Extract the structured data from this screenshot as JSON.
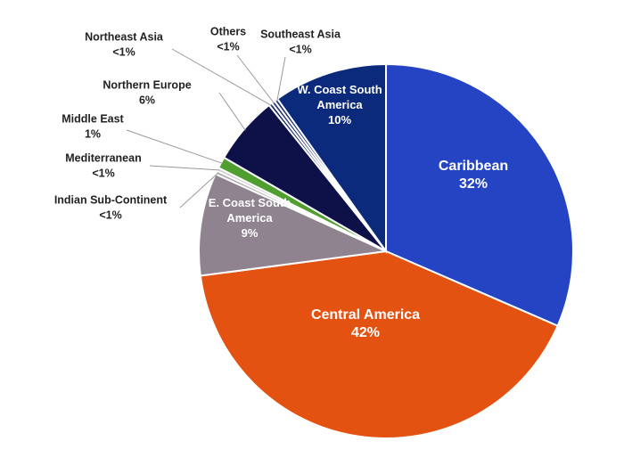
{
  "chart_data": {
    "type": "pie",
    "title": "",
    "slices": [
      {
        "name": "Caribbean",
        "value": 32,
        "label_lines": [
          "Caribbean"
        ],
        "pct_label": "32%",
        "color": "#2444c4",
        "label_pos": "inside"
      },
      {
        "name": "Central America",
        "value": 42,
        "label_lines": [
          "Central America"
        ],
        "pct_label": "42%",
        "color": "#e45211",
        "label_pos": "inside"
      },
      {
        "name": "E. Coast South America",
        "value": 9,
        "label_lines": [
          "E. Coast South",
          "America"
        ],
        "pct_label": "9%",
        "color": "#8e838f",
        "label_pos": "inside"
      },
      {
        "name": "Indian Sub-Continent",
        "value": 0.3,
        "label_lines": [
          "Indian Sub-Continent"
        ],
        "pct_label": "<1%",
        "color": "#a9a9a9",
        "label_pos": "outside"
      },
      {
        "name": "Mediterranean",
        "value": 0.3,
        "label_lines": [
          "Mediterranean"
        ],
        "pct_label": "<1%",
        "color": "#cfcfcf",
        "label_pos": "outside"
      },
      {
        "name": "Middle East",
        "value": 1,
        "label_lines": [
          "Middle East"
        ],
        "pct_label": "1%",
        "color": "#4f9e2f",
        "label_pos": "outside"
      },
      {
        "name": "Northern Europe",
        "value": 6,
        "label_lines": [
          "Northern Europe"
        ],
        "pct_label": "6%",
        "color": "#0d1148",
        "label_pos": "outside"
      },
      {
        "name": "Northeast Asia",
        "value": 0.3,
        "label_lines": [
          "Northeast Asia"
        ],
        "pct_label": "<1%",
        "color": "#1b2a66",
        "label_pos": "outside"
      },
      {
        "name": "Others",
        "value": 0.3,
        "label_lines": [
          "Others"
        ],
        "pct_label": "<1%",
        "color": "#26366e",
        "label_pos": "outside"
      },
      {
        "name": "Southeast Asia",
        "value": 0.3,
        "label_lines": [
          "Southeast Asia"
        ],
        "pct_label": "<1%",
        "color": "#1c2c80",
        "label_pos": "outside"
      },
      {
        "name": "W. Coast South America",
        "value": 10,
        "label_lines": [
          "W. Coast South",
          "America"
        ],
        "pct_label": "10%",
        "color": "#0c2a7c",
        "label_pos": "inside"
      }
    ],
    "legend": "none",
    "start_angle": "top, clockwise"
  }
}
